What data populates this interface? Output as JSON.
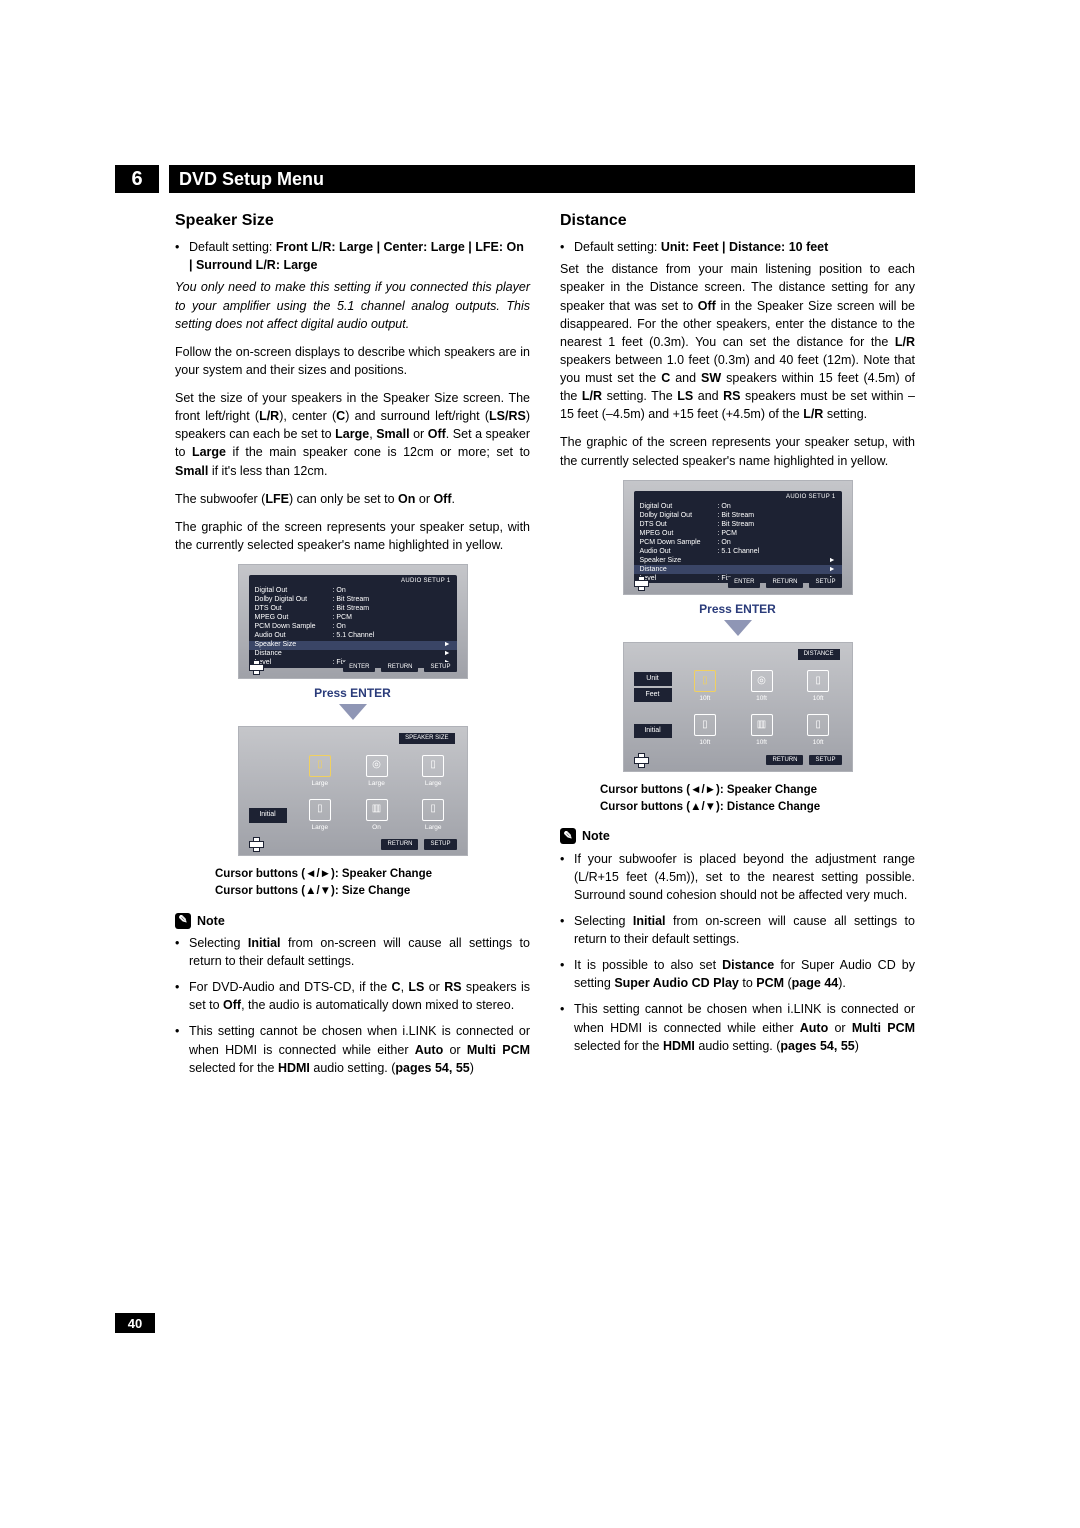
{
  "chapter": {
    "number": "6",
    "title": "DVD Setup Menu"
  },
  "pageNumber": "40",
  "left": {
    "heading": "Speaker Size",
    "default_label": "Default setting:",
    "default_value": "Front L/R: Large | Center: Large | LFE: On | Surround L/R: Large",
    "p1": "You only need to make this setting if you connected this player to your amplifier using the 5.1 channel analog outputs. This setting does not affect digital audio output.",
    "p2": "Follow the on-screen displays to describe which speakers are in your system and their sizes and positions.",
    "p3a": "Set the size of your speakers in the Speaker Size screen. The front left/right (",
    "p3b": "), center (",
    "p3c": ") and surround left/right (",
    "p3d": ") speakers can each be set to ",
    "p3e": " or ",
    "p3f": ". Set a speaker to ",
    "p3g": " if the main speaker cone is 12cm or more; set to ",
    "p3h": " if it's less than 12cm.",
    "LR": "L/R",
    "C": "C",
    "LSRS": "LS/RS",
    "Large": "Large",
    "Small": "Small",
    "Off": "Off",
    "p4a": "The subwoofer (",
    "LFE": "LFE",
    "p4b": ") can only be set to ",
    "On": "On",
    "p4c": " or ",
    "p4d": ".",
    "p5": "The graphic of the screen represents your speaker setup, with the currently selected speaker's name highlighted in yellow.",
    "press_enter": "Press ENTER",
    "caption1": "Cursor buttons (◄/►): Speaker Change",
    "caption2": "Cursor buttons (▲/▼): Size Change",
    "note_label": "Note",
    "notes": [
      "Selecting <b>Initial</b> from on-screen will cause all settings to return to their default settings.",
      "For DVD-Audio and DTS-CD, if the <b>C</b>, <b>LS</b> or <b>RS</b> speakers is set to <b>Off</b>, the audio is automatically down mixed to stereo.",
      "This setting cannot be chosen when i.LINK is connected or when HDMI is connected while either <b>Auto</b> or <b>Multi PCM</b> selected for the <b>HDMI</b> audio setting. (<b>pages 54, 55</b>)"
    ],
    "osd1": {
      "title": "AUDIO SETUP 1",
      "rows": [
        [
          "Digital Out",
          ": On"
        ],
        [
          "Dolby Digital Out",
          ": Bit Stream"
        ],
        [
          "DTS Out",
          ": Bit Stream"
        ],
        [
          "MPEG Out",
          ": PCM"
        ],
        [
          "PCM Down Sample",
          ": On"
        ],
        [
          "Audio Out",
          ": 5.1 Channel"
        ],
        [
          "Speaker Size",
          ""
        ],
        [
          "Distance",
          ""
        ],
        [
          "Level",
          ": Fix"
        ]
      ],
      "selected": 6,
      "buttons": [
        "ENTER",
        "RETURN",
        "SETUP"
      ]
    },
    "osd2": {
      "title": "SPEAKER SIZE",
      "row1_side": "",
      "row2_side": "Initial",
      "row1": [
        [
          "▯",
          "Large"
        ],
        [
          "◎",
          "Large"
        ],
        [
          "▯",
          "Large"
        ]
      ],
      "row2": [
        [
          "▯",
          "Large"
        ],
        [
          "▥",
          "On"
        ],
        [
          "▯",
          "Large"
        ]
      ],
      "buttons": [
        "RETURN",
        "SETUP"
      ]
    }
  },
  "right": {
    "heading": "Distance",
    "default_label": "Default setting:",
    "default_value": "Unit: Feet | Distance: 10 feet",
    "p1a": "Set the distance from your main listening position to each speaker in the Distance screen. The distance setting for any speaker that was set to ",
    "p1b": " in the Speaker Size screen will be disappeared. For the other speakers, enter the distance to the nearest 1 feet (0.3m). You can set the distance for the ",
    "p1c": " speakers between 1.0 feet (0.3m) and 40 feet (12m). Note that you must set the ",
    "p1d": " and ",
    "p1e": " speakers within 15 feet (4.5m) of the ",
    "p1f": " setting. The ",
    "p1g": " and ",
    "p1h": " speakers must be set within –15 feet (–4.5m) and +15 feet (+4.5m) of the ",
    "p1i": " setting.",
    "Off": "Off",
    "LR": "L/R",
    "C": "C",
    "SW": "SW",
    "LS": "LS",
    "RS": "RS",
    "p2": "The graphic of the screen represents your speaker setup, with the currently selected speaker's name highlighted in yellow.",
    "press_enter": "Press ENTER",
    "caption1": "Cursor buttons (◄/►): Speaker Change",
    "caption2": "Cursor buttons (▲/▼): Distance Change",
    "note_label": "Note",
    "notes": [
      "If your subwoofer is placed beyond the adjustment range (L/R+15 feet (4.5m)), set to the nearest setting possible. Surround sound cohesion should not be affected very much.",
      "Selecting <b>Initial</b> from on-screen will cause all settings to return to their default settings.",
      "It is possible to also set <b>Distance</b> for Super Audio CD by setting <b>Super Audio CD Play</b> to <b>PCM</b> (<b>page 44</b>).",
      "This setting cannot be chosen when i.LINK is connected or when HDMI is connected while either <b>Auto</b> or <b>Multi PCM</b> selected for the <b>HDMI</b> audio setting. (<b>pages 54, 55</b>)"
    ],
    "osd1": {
      "title": "AUDIO SETUP 1",
      "rows": [
        [
          "Digital Out",
          ": On"
        ],
        [
          "Dolby Digital Out",
          ": Bit Stream"
        ],
        [
          "DTS Out",
          ": Bit Stream"
        ],
        [
          "MPEG Out",
          ": PCM"
        ],
        [
          "PCM Down Sample",
          ": On"
        ],
        [
          "Audio Out",
          ": 5.1 Channel"
        ],
        [
          "Speaker Size",
          ""
        ],
        [
          "Distance",
          ""
        ],
        [
          "Level",
          ": Fix"
        ]
      ],
      "selected": 7,
      "buttons": [
        "ENTER",
        "RETURN",
        "SETUP"
      ]
    },
    "osd2": {
      "title": "DISTANCE",
      "row1_side": "Unit\nFeet",
      "row2_side": "Initial",
      "row1": [
        [
          "▯",
          "10ft"
        ],
        [
          "◎",
          "10ft"
        ],
        [
          "▯",
          "10ft"
        ]
      ],
      "row2": [
        [
          "▯",
          "10ft"
        ],
        [
          "▥",
          "10ft"
        ],
        [
          "▯",
          "10ft"
        ]
      ],
      "buttons": [
        "RETURN",
        "SETUP"
      ]
    }
  }
}
